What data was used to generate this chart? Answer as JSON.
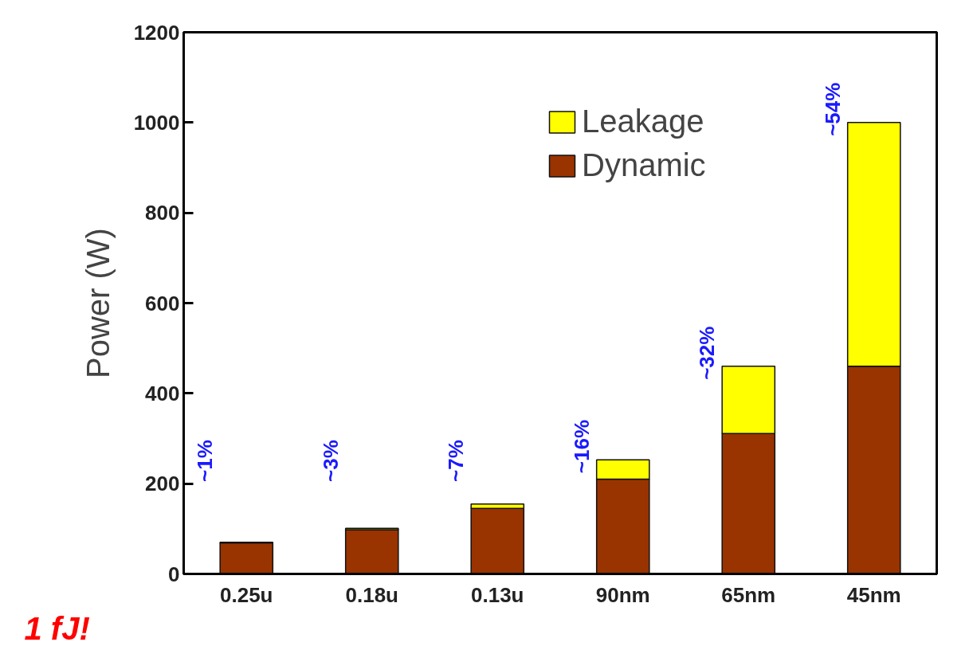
{
  "chart_data": {
    "type": "bar",
    "stacked": true,
    "ylabel": "Power (W)",
    "categories": [
      "0.25u",
      "0.18u",
      "0.13u",
      "90nm",
      "65nm",
      "45nm"
    ],
    "series": [
      {
        "name": "Dynamic",
        "color": "#993300",
        "values": [
          69,
          98,
          145,
          210,
          311,
          460
        ]
      },
      {
        "name": "Leakage",
        "color": "#ffff00",
        "values": [
          1,
          3,
          10,
          43,
          149,
          540
        ]
      }
    ],
    "ylim": [
      0,
      1200
    ],
    "yticks": [
      0,
      200,
      400,
      600,
      800,
      1000,
      1200
    ],
    "grid": false,
    "legend": "top right",
    "annotations": [
      "~1%",
      "~3%",
      "~7%",
      "~16%",
      "~32%",
      "~54%",
      "1 fJ!"
    ]
  }
}
